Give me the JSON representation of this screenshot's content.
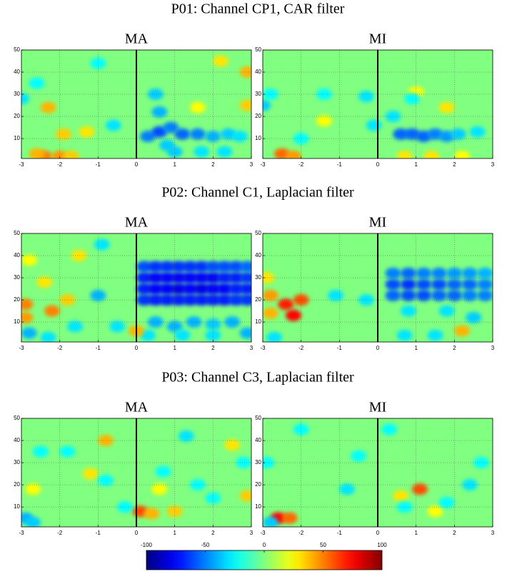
{
  "figure": {
    "row_titles": [
      "P01: Channel CP1, CAR filter",
      "P02: Channel C1, Laplacian filter",
      "P03: Channel C3, Laplacian filter"
    ],
    "colorbar": {
      "clim": [
        -100,
        100
      ],
      "ticks": [
        -100,
        -50,
        0,
        50,
        100
      ]
    }
  },
  "chart_data": [
    {
      "type": "heatmap",
      "title": "MA",
      "xlim": [
        -3,
        3
      ],
      "xticks": [
        -3,
        -2,
        -1,
        0,
        1,
        2,
        3
      ],
      "ylim": [
        1,
        50
      ],
      "yticks": [
        10,
        20,
        30,
        40,
        50
      ],
      "grid": true,
      "x": [
        -2.3,
        -2.4,
        -2.0,
        -2.6,
        -1.7,
        -1.3,
        -1.9,
        2.9,
        2.9,
        2.2,
        1.6,
        -3.0,
        -2.6,
        -1.0,
        -0.6,
        0.3,
        0.6,
        0.9,
        0.6,
        0.5,
        1.2,
        1.6,
        2.0,
        2.4,
        2.7,
        1.0,
        1.7,
        2.3,
        0.8
      ],
      "y": [
        24,
        2,
        2,
        3,
        2,
        13,
        12,
        40,
        25,
        45,
        24,
        28,
        35,
        44,
        16,
        11,
        13,
        15,
        22,
        30,
        12,
        12,
        11,
        12,
        11,
        4,
        4,
        4,
        7
      ],
      "values": [
        40,
        50,
        45,
        40,
        35,
        30,
        35,
        40,
        35,
        30,
        25,
        -30,
        -25,
        -25,
        -30,
        -50,
        -60,
        -50,
        -40,
        -35,
        -55,
        -50,
        -40,
        -35,
        -30,
        -35,
        -30,
        -30,
        -35
      ]
    },
    {
      "type": "heatmap",
      "title": "MI",
      "xlim": [
        -3,
        3
      ],
      "xticks": [
        -3,
        -2,
        -1,
        0,
        1,
        2,
        3
      ],
      "ylim": [
        1,
        50
      ],
      "yticks": [
        10,
        20,
        30,
        40,
        50
      ],
      "grid": true,
      "x": [
        -2.5,
        -2.2,
        -1.4,
        1.8,
        0.7,
        1.4,
        2.2,
        1.0,
        -3.0,
        -2.8,
        -1.4,
        -0.3,
        -0.1,
        0.4,
        0.6,
        0.9,
        1.2,
        1.5,
        1.8,
        2.1,
        0.9,
        2.6,
        -2.0
      ],
      "y": [
        3,
        2,
        18,
        24,
        2,
        2,
        2,
        31,
        25,
        30,
        30,
        29,
        16,
        20,
        12,
        12,
        11,
        12,
        11,
        12,
        28,
        13,
        10
      ],
      "values": [
        55,
        45,
        25,
        30,
        30,
        30,
        25,
        25,
        -35,
        -25,
        -25,
        -30,
        -30,
        -30,
        -55,
        -55,
        -55,
        -50,
        -45,
        -35,
        -25,
        -30,
        -25
      ]
    },
    {
      "type": "heatmap",
      "title": "MA",
      "xlim": [
        -3,
        3
      ],
      "xticks": [
        -3,
        -2,
        -1,
        0,
        1,
        2,
        3
      ],
      "ylim": [
        1,
        50
      ],
      "yticks": [
        10,
        20,
        30,
        40,
        50
      ],
      "grid": true,
      "x": [
        0.2,
        0.5,
        0.8,
        1.1,
        1.4,
        1.7,
        2.0,
        2.3,
        2.6,
        2.9,
        0.2,
        0.5,
        0.8,
        1.1,
        1.4,
        1.7,
        2.0,
        2.3,
        2.6,
        2.9,
        0.2,
        0.5,
        0.8,
        1.1,
        1.4,
        1.7,
        2.0,
        2.3,
        2.6,
        2.9,
        0.2,
        0.5,
        0.8,
        1.1,
        1.4,
        1.7,
        2.0,
        2.3,
        2.6,
        2.9,
        0.5,
        1.0,
        1.5,
        2.0,
        2.5,
        2.9,
        0.3,
        1.2,
        2.0,
        -2.9,
        -2.9,
        -2.2,
        -1.8,
        -1.5,
        0.0,
        -2.4,
        -2.8,
        -1.0,
        -0.9,
        -2.8,
        -2.3,
        -0.5,
        -1.6
      ],
      "y": [
        20,
        20,
        20,
        20,
        20,
        20,
        20,
        20,
        20,
        20,
        25,
        25,
        25,
        25,
        25,
        25,
        25,
        25,
        25,
        25,
        30,
        30,
        30,
        30,
        30,
        30,
        30,
        30,
        30,
        30,
        35,
        35,
        35,
        35,
        35,
        35,
        35,
        35,
        35,
        35,
        10,
        8,
        10,
        9,
        10,
        5,
        4,
        4,
        4,
        18,
        12,
        15,
        20,
        40,
        6,
        28,
        38,
        22,
        45,
        5,
        3,
        8,
        8
      ],
      "values": [
        -65,
        -70,
        -70,
        -70,
        -70,
        -70,
        -70,
        -70,
        -65,
        -65,
        -70,
        -75,
        -75,
        -80,
        -75,
        -80,
        -75,
        -75,
        -70,
        -70,
        -70,
        -75,
        -75,
        -75,
        -75,
        -75,
        -75,
        -70,
        -70,
        -65,
        -60,
        -65,
        -65,
        -65,
        -65,
        -65,
        -60,
        -60,
        -60,
        -55,
        -40,
        -40,
        -40,
        -35,
        -40,
        -40,
        -30,
        -30,
        -30,
        50,
        45,
        50,
        35,
        30,
        40,
        30,
        25,
        -40,
        -30,
        -40,
        -30,
        -30,
        -30
      ]
    },
    {
      "type": "heatmap",
      "title": "MI",
      "xlim": [
        -3,
        3
      ],
      "xticks": [
        -3,
        -2,
        -1,
        0,
        1,
        2,
        3
      ],
      "ylim": [
        1,
        50
      ],
      "yticks": [
        10,
        20,
        30,
        40,
        50
      ],
      "grid": true,
      "x": [
        0.4,
        0.8,
        1.2,
        1.6,
        2.0,
        2.4,
        2.8,
        0.4,
        0.8,
        1.2,
        1.6,
        2.0,
        2.4,
        2.8,
        0.4,
        0.8,
        1.2,
        1.6,
        2.0,
        2.4,
        2.8,
        -2.4,
        -2.2,
        -2.0,
        -2.8,
        -2.8,
        -2.9,
        2.2,
        -1.1,
        -0.3,
        0.7,
        1.5,
        2.5,
        0.8,
        1.8,
        -2.7
      ],
      "y": [
        22,
        22,
        22,
        22,
        22,
        22,
        22,
        27,
        27,
        27,
        27,
        27,
        27,
        27,
        32,
        32,
        32,
        32,
        32,
        32,
        32,
        18,
        13,
        20,
        22,
        14,
        30,
        6,
        22,
        20,
        4,
        4,
        12,
        15,
        15,
        3
      ],
      "values": [
        -55,
        -60,
        -60,
        -55,
        -55,
        -50,
        -50,
        -60,
        -65,
        -60,
        -60,
        -55,
        -55,
        -50,
        -50,
        -55,
        -50,
        -50,
        -45,
        -45,
        -40,
        70,
        75,
        60,
        45,
        40,
        30,
        40,
        -30,
        -30,
        -30,
        -30,
        -35,
        -30,
        -30,
        -30
      ]
    },
    {
      "type": "heatmap",
      "title": "MA",
      "xlim": [
        -3,
        3
      ],
      "xticks": [
        -3,
        -2,
        -1,
        0,
        1,
        2,
        3
      ],
      "ylim": [
        1,
        50
      ],
      "yticks": [
        10,
        20,
        30,
        40,
        50
      ],
      "grid": true,
      "x": [
        0.1,
        0.4,
        1.0,
        -0.8,
        -1.2,
        2.9,
        2.5,
        0.6,
        -2.7,
        -2.9,
        -2.7,
        -2.5,
        -1.8,
        -0.8,
        0.7,
        1.6,
        2.0,
        -0.3,
        1.3,
        2.8
      ],
      "y": [
        8,
        7,
        8,
        40,
        25,
        15,
        38,
        18,
        18,
        5,
        3,
        35,
        35,
        22,
        26,
        20,
        14,
        10,
        42,
        30
      ],
      "values": [
        60,
        40,
        35,
        40,
        30,
        35,
        30,
        25,
        25,
        -40,
        -35,
        -25,
        -25,
        -25,
        -25,
        -25,
        -25,
        -25,
        -30,
        -25
      ]
    },
    {
      "type": "heatmap",
      "title": "MI",
      "xlim": [
        -3,
        3
      ],
      "xticks": [
        -3,
        -2,
        -1,
        0,
        1,
        2,
        3
      ],
      "ylim": [
        1,
        50
      ],
      "yticks": [
        10,
        20,
        30,
        40,
        50
      ],
      "grid": true,
      "x": [
        -2.6,
        -2.3,
        1.1,
        0.6,
        1.5,
        -2.8,
        -2.9,
        -0.8,
        -0.5,
        0.7,
        1.8,
        2.4,
        2.7,
        -2.0,
        0.3
      ],
      "y": [
        5,
        5,
        18,
        15,
        8,
        3,
        30,
        18,
        33,
        10,
        12,
        20,
        30,
        45,
        45
      ],
      "values": [
        75,
        55,
        60,
        30,
        25,
        -35,
        -25,
        -30,
        -25,
        -25,
        -25,
        -30,
        -25,
        -25,
        -25
      ]
    }
  ]
}
